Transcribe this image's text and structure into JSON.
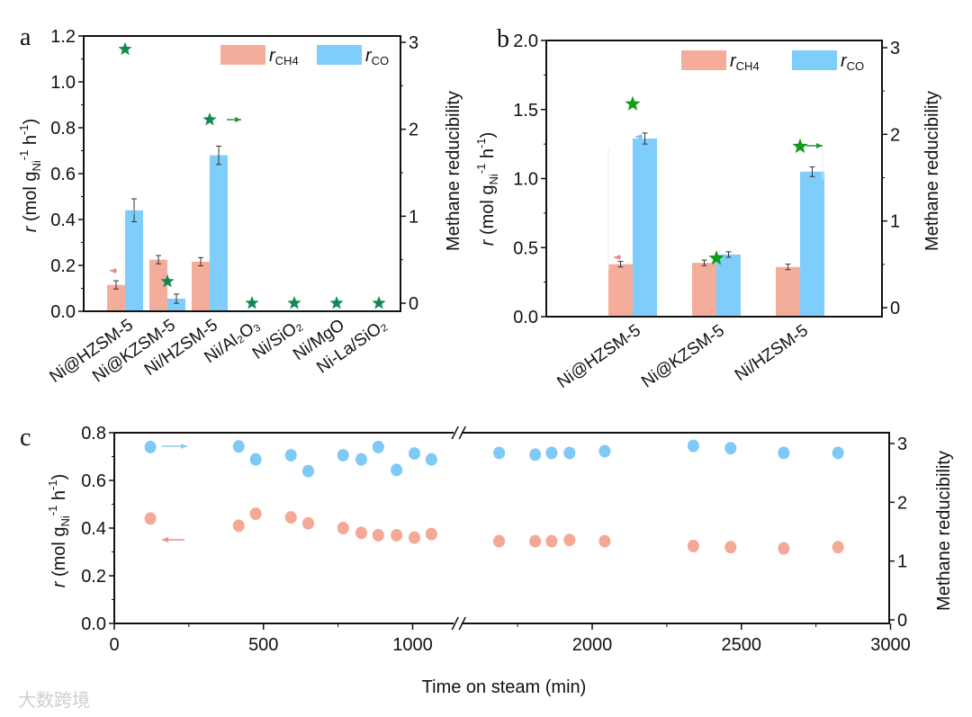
{
  "panels": {
    "a": "a",
    "b": "b",
    "c": "c"
  },
  "colors": {
    "ch4": "#f5ad9b",
    "co": "#7fcdfb",
    "star_a": "#118a4f",
    "star_b": "#109b1a",
    "ch4_point": "#f4a896",
    "co_point": "#7ec9f5"
  },
  "legend": {
    "r": "r",
    "ch4_sub": "CH4",
    "co_sub": "CO"
  },
  "y_label": {
    "r": "r",
    "main": " (mol g",
    "sub": "Ni",
    "sup1": "-1",
    "tail": " h",
    "sup2": "-1",
    "close": ")"
  },
  "right_label": "Methane reducibility",
  "watermark": "大数跨境",
  "chart_data": [
    {
      "id": "a",
      "type": "bar",
      "categories": [
        "Ni@HZSM-5",
        "Ni@KZSM-5",
        "Ni/HZSM-5",
        "Ni/Al₂O₃",
        "Ni/SiO₂",
        "Ni/MgO",
        "Ni-La/SiO₂"
      ],
      "series": [
        {
          "name": "r_CH4",
          "values": [
            0.115,
            0.225,
            0.216,
            null,
            null,
            null,
            null
          ],
          "errors": [
            0.018,
            0.018,
            0.018,
            null,
            null,
            null,
            null
          ]
        },
        {
          "name": "r_CO",
          "values": [
            0.44,
            0.055,
            0.68,
            null,
            null,
            null,
            null
          ],
          "errors": [
            0.05,
            0.02,
            0.04,
            null,
            null,
            null,
            null
          ]
        }
      ],
      "methane_reducibility": [
        2.92,
        0.25,
        2.11,
        0,
        0,
        0,
        0
      ],
      "ylim": [
        0,
        1.2
      ],
      "yticks": [
        "0.0",
        "0.2",
        "0.4",
        "0.6",
        "0.8",
        "1.0",
        "1.2"
      ],
      "y2lim": [
        0,
        3
      ],
      "y2ticks": [
        "0",
        "1",
        "2",
        "3"
      ],
      "legend_position": "top-right"
    },
    {
      "id": "b",
      "type": "bar",
      "categories": [
        "Ni@HZSM-5",
        "Ni@KZSM-5",
        "Ni/HZSM-5"
      ],
      "series": [
        {
          "name": "r_CH4",
          "values": [
            0.38,
            0.39,
            0.36
          ],
          "errors": [
            0.02,
            0.02,
            0.02
          ]
        },
        {
          "name": "r_CO",
          "values": [
            1.29,
            0.45,
            1.05
          ],
          "errors": [
            0.04,
            0.02,
            0.035
          ]
        }
      ],
      "methane_reducibility": [
        2.35,
        0.57,
        1.86
      ],
      "ylim": [
        0,
        2.0
      ],
      "yticks": [
        "0.0",
        "0.5",
        "1.0",
        "1.5",
        "2.0"
      ],
      "y2lim": [
        0,
        3
      ],
      "y2ticks": [
        "0",
        "1",
        "2",
        "3"
      ],
      "legend_position": "top-right"
    },
    {
      "id": "c",
      "type": "scatter",
      "xlabel": "Time on steam (min)",
      "xticks": [
        "0",
        "500",
        "1000",
        "2000",
        "2500",
        "3000"
      ],
      "x_break": [
        1150,
        1550
      ],
      "x": [
        121,
        417,
        474,
        592,
        650,
        767,
        828,
        885,
        946,
        1006,
        1063,
        1688,
        1809,
        1864,
        1924,
        2042,
        2339,
        2464,
        2642,
        2824
      ],
      "series": [
        {
          "name": "r_CH4",
          "axis": "left",
          "values": [
            0.44,
            0.41,
            0.46,
            0.445,
            0.42,
            0.4,
            0.38,
            0.37,
            0.37,
            0.36,
            0.375,
            0.345,
            0.345,
            0.345,
            0.35,
            0.345,
            0.325,
            0.32,
            0.315,
            0.32
          ]
        },
        {
          "name": "Methane reducibility",
          "axis": "right",
          "values": [
            2.94,
            2.95,
            2.73,
            2.8,
            2.53,
            2.8,
            2.73,
            2.94,
            2.55,
            2.83,
            2.73,
            2.84,
            2.81,
            2.84,
            2.84,
            2.87,
            2.96,
            2.92,
            2.84,
            2.84
          ]
        }
      ],
      "ylim": [
        0,
        0.8
      ],
      "yticks": [
        "0.0",
        "0.2",
        "0.4",
        "0.6",
        "0.8"
      ],
      "y2lim": [
        0,
        3
      ],
      "y2ticks": [
        "0",
        "1",
        "2",
        "3"
      ]
    }
  ]
}
